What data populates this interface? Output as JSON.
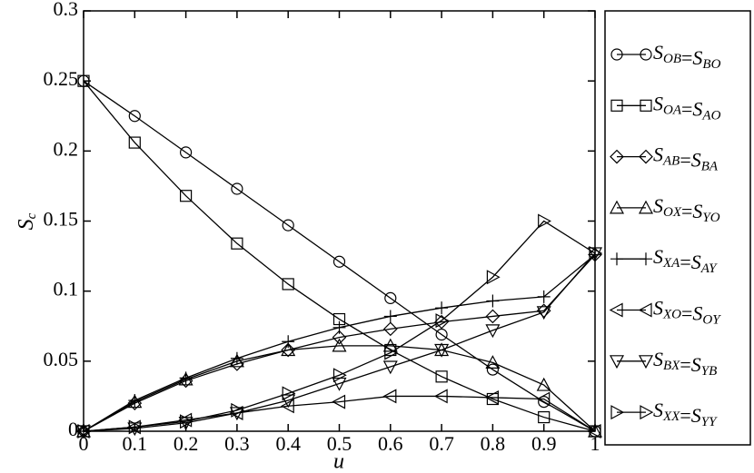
{
  "chart_data": {
    "type": "line",
    "x_label": "u",
    "y_label": "Sc",
    "x": [
      0,
      0.1,
      0.2,
      0.3,
      0.4,
      0.5,
      0.6,
      0.7,
      0.8,
      0.9,
      1
    ],
    "xlim": [
      0,
      1
    ],
    "xticks": [
      0,
      0.1,
      0.2,
      0.3,
      0.4,
      0.5,
      0.6,
      0.7,
      0.8,
      0.9,
      1
    ],
    "ylim": [
      0,
      0.3
    ],
    "yticks": [
      0,
      0.05,
      0.1,
      0.15,
      0.2,
      0.25,
      0.3
    ],
    "legend": "outside-right",
    "series": [
      {
        "name": "SOB=SBO",
        "color": "#000000",
        "marker": "circle",
        "values": [
          0.25,
          0.225,
          0.199,
          0.173,
          0.147,
          0.121,
          0.095,
          0.069,
          0.044,
          0.021,
          0
        ]
      },
      {
        "name": "SOA=SAO",
        "color": "#000000",
        "marker": "square",
        "values": [
          0.25,
          0.206,
          0.168,
          0.134,
          0.105,
          0.08,
          0.058,
          0.039,
          0.023,
          0.01,
          0
        ]
      },
      {
        "name": "SAB=SBA",
        "color": "#000000",
        "marker": "diamond",
        "values": [
          0,
          0.02,
          0.036,
          0.048,
          0.058,
          0.067,
          0.073,
          0.078,
          0.082,
          0.086,
          0.126
        ]
      },
      {
        "name": "SOX=SYO",
        "color": "#000000",
        "marker": "triangle-up",
        "values": [
          0,
          0.021,
          0.037,
          0.05,
          0.058,
          0.061,
          0.061,
          0.058,
          0.049,
          0.033,
          0
        ]
      },
      {
        "name": "SXA=SAY",
        "color": "#000000",
        "marker": "plus",
        "values": [
          0,
          0.022,
          0.038,
          0.052,
          0.064,
          0.074,
          0.082,
          0.088,
          0.093,
          0.096,
          0.126
        ]
      },
      {
        "name": "SXO=SOY",
        "color": "#000000",
        "marker": "triangle-left",
        "values": [
          0,
          0.003,
          0.008,
          0.013,
          0.018,
          0.021,
          0.025,
          0.025,
          0.024,
          0.023,
          0
        ]
      },
      {
        "name": "SBX=SYB",
        "color": "#000000",
        "marker": "triangle-down",
        "values": [
          0,
          0.002,
          0.006,
          0.013,
          0.022,
          0.034,
          0.046,
          0.058,
          0.072,
          0.085,
          0.127
        ]
      },
      {
        "name": "SXX=SYY",
        "color": "#000000",
        "marker": "triangle-right",
        "values": [
          0,
          0.003,
          0.007,
          0.015,
          0.027,
          0.04,
          0.056,
          0.079,
          0.11,
          0.15,
          0.127
        ]
      }
    ]
  }
}
